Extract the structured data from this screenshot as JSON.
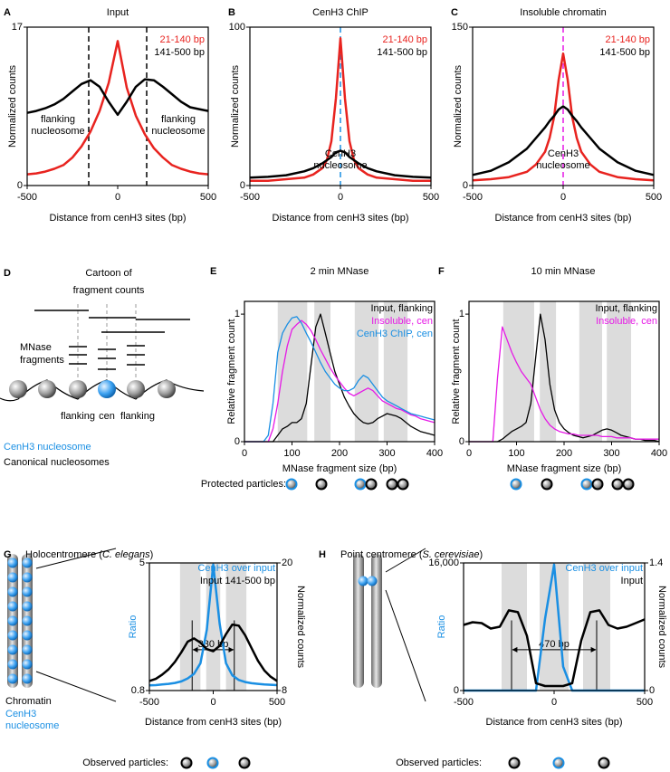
{
  "chart_data": [
    {
      "type": "line",
      "label": "A",
      "title": "Input",
      "xlabel": "Distance from cenH3 sites (bp)",
      "ylabel": "Normalized counts",
      "xlim": [
        -500,
        500
      ],
      "xticks": [
        -500,
        0,
        500
      ],
      "ylim": [
        0,
        17
      ],
      "yticks": [
        0,
        17
      ],
      "x": [
        -500,
        -450,
        -400,
        -350,
        -300,
        -250,
        -200,
        -150,
        -100,
        -50,
        0,
        50,
        100,
        150,
        200,
        250,
        300,
        350,
        400,
        450,
        500
      ],
      "series": [
        {
          "name": "21-140 bp",
          "color": "#e8231f",
          "values": [
            1.2,
            1.3,
            1.5,
            1.8,
            2.2,
            3,
            4.2,
            5.8,
            8,
            11,
            15.5,
            10.5,
            7.5,
            5.5,
            4,
            3,
            2.2,
            1.8,
            1.5,
            1.3,
            1.2
          ]
        },
        {
          "name": "141-500 bp",
          "color": "#000000",
          "values": [
            7.8,
            8,
            8.3,
            8.7,
            9.3,
            10.1,
            10.9,
            11.3,
            10.6,
            9,
            7.6,
            9,
            10.6,
            11.4,
            11.3,
            10.6,
            9.8,
            9,
            8.4,
            8.2,
            8
          ]
        }
      ],
      "ref_lines": [
        -160,
        160
      ],
      "ref_line_color": "#000000",
      "annotations": [
        [
          "flanking",
          "nucleosome"
        ],
        [
          "flanking",
          "nucleosome"
        ]
      ]
    },
    {
      "type": "line",
      "label": "B",
      "title": "CenH3 ChIP",
      "xlabel": "Distance from cenH3 sites (bp)",
      "ylabel": "Normalized counts",
      "xlim": [
        -500,
        500
      ],
      "xticks": [
        -500,
        0,
        500
      ],
      "ylim": [
        0,
        100
      ],
      "yticks": [
        0,
        100
      ],
      "x": [
        -500,
        -400,
        -300,
        -200,
        -150,
        -100,
        -75,
        -50,
        -25,
        0,
        25,
        50,
        75,
        100,
        150,
        200,
        300,
        400,
        500
      ],
      "series": [
        {
          "name": "21-140 bp",
          "color": "#e8231f",
          "values": [
            3,
            3,
            4,
            5,
            7,
            11,
            16,
            28,
            55,
            93,
            55,
            28,
            16,
            11,
            7,
            5,
            4,
            3,
            3
          ]
        },
        {
          "name": "141-500 bp",
          "color": "#000000",
          "values": [
            5,
            5.5,
            6.5,
            9,
            11,
            14,
            16,
            18,
            21,
            22,
            21,
            18,
            16,
            14,
            11,
            9,
            6.5,
            5.5,
            5
          ]
        }
      ],
      "ref_lines": [
        0
      ],
      "ref_line_color": "#1a8fe3",
      "annotations": [
        [
          "CenH3",
          "nucleosome"
        ]
      ]
    },
    {
      "type": "line",
      "label": "C",
      "title": "Insoluble chromatin",
      "xlabel": "Distance from cenH3 sites (bp)",
      "ylabel": "Normalized counts",
      "xlim": [
        -500,
        500
      ],
      "xticks": [
        -500,
        0,
        500
      ],
      "ylim": [
        0,
        150
      ],
      "yticks": [
        0,
        150
      ],
      "x": [
        -500,
        -400,
        -300,
        -200,
        -150,
        -100,
        -75,
        -50,
        -25,
        0,
        25,
        50,
        75,
        100,
        150,
        200,
        300,
        400,
        500
      ],
      "series": [
        {
          "name": "21-140 bp",
          "color": "#e8231f",
          "values": [
            5,
            6,
            8,
            13,
            20,
            32,
            45,
            65,
            100,
            125,
            100,
            65,
            45,
            32,
            20,
            13,
            8,
            6,
            5
          ]
        },
        {
          "name": "141-500 bp",
          "color": "#000000",
          "values": [
            10,
            14,
            22,
            35,
            45,
            55,
            61,
            66,
            72,
            75,
            72,
            66,
            61,
            55,
            45,
            35,
            22,
            14,
            10
          ]
        }
      ],
      "ref_lines": [
        0
      ],
      "ref_line_color": "#e619e6",
      "annotations": [
        [
          "CenH3",
          "nucleosome"
        ]
      ]
    },
    {
      "type": "line",
      "label": "E",
      "title": "2 min MNase",
      "xlabel": "MNase fragment size (bp)",
      "ylabel": "Relative fragment count",
      "xlim": [
        0,
        400
      ],
      "xticks": [
        0,
        100,
        200,
        300,
        400
      ],
      "ylim": [
        0,
        1.1
      ],
      "yticks": [
        0,
        1
      ],
      "x": [
        0,
        10,
        20,
        30,
        40,
        50,
        60,
        70,
        80,
        90,
        100,
        110,
        120,
        130,
        140,
        150,
        160,
        170,
        180,
        190,
        200,
        210,
        220,
        230,
        240,
        250,
        260,
        270,
        280,
        290,
        300,
        310,
        320,
        330,
        340,
        350,
        360,
        370,
        380,
        390,
        400
      ],
      "series": [
        {
          "name": "Input, flanking",
          "color": "#000000",
          "values": [
            0,
            0,
            0,
            0,
            0,
            0,
            0,
            0.05,
            0.1,
            0.12,
            0.15,
            0.15,
            0.18,
            0.3,
            0.6,
            0.9,
            1.0,
            0.85,
            0.7,
            0.55,
            0.45,
            0.35,
            0.28,
            0.22,
            0.18,
            0.15,
            0.14,
            0.15,
            0.18,
            0.2,
            0.22,
            0.21,
            0.2,
            0.18,
            0.15,
            0.12,
            0.1,
            0.08,
            0.07,
            0.06,
            0.05
          ]
        },
        {
          "name": "Insoluble, cen",
          "color": "#e619e6",
          "values": [
            0,
            0,
            0,
            0,
            0,
            0,
            0.1,
            0.3,
            0.55,
            0.75,
            0.88,
            0.92,
            0.95,
            0.92,
            0.87,
            0.8,
            0.72,
            0.65,
            0.58,
            0.52,
            0.47,
            0.42,
            0.38,
            0.36,
            0.38,
            0.4,
            0.42,
            0.4,
            0.36,
            0.32,
            0.3,
            0.28,
            0.26,
            0.25,
            0.23,
            0.21,
            0.2,
            0.18,
            0.17,
            0.16,
            0.15
          ]
        },
        {
          "name": "CenH3 ChIP, cen",
          "color": "#1a8fe3",
          "values": [
            0,
            0,
            0,
            0,
            0,
            0.05,
            0.3,
            0.7,
            0.85,
            0.92,
            0.97,
            0.98,
            0.93,
            0.85,
            0.78,
            0.7,
            0.62,
            0.55,
            0.5,
            0.45,
            0.42,
            0.4,
            0.4,
            0.42,
            0.48,
            0.52,
            0.5,
            0.45,
            0.4,
            0.35,
            0.32,
            0.3,
            0.28,
            0.26,
            0.24,
            0.22,
            0.21,
            0.2,
            0.19,
            0.18,
            0.17
          ]
        }
      ],
      "bands": [
        [
          70,
          132
        ],
        [
          147,
          181
        ],
        [
          232,
          282
        ],
        [
          293,
          343
        ]
      ],
      "footer": "Protected particles:"
    },
    {
      "type": "line",
      "label": "F",
      "title": "10 min MNase",
      "xlabel": "MNase fragment size (bp)",
      "ylabel": "Relative fragment count",
      "xlim": [
        0,
        400
      ],
      "xticks": [
        0,
        100,
        200,
        300,
        400
      ],
      "ylim": [
        0,
        1.1
      ],
      "yticks": [
        0,
        1
      ],
      "x": [
        0,
        10,
        20,
        30,
        40,
        50,
        60,
        70,
        80,
        90,
        100,
        110,
        120,
        130,
        140,
        150,
        160,
        170,
        180,
        190,
        200,
        210,
        220,
        230,
        240,
        250,
        260,
        270,
        280,
        290,
        300,
        310,
        320,
        330,
        340,
        350,
        360,
        370,
        380,
        390,
        400
      ],
      "series": [
        {
          "name": "Input, flanking",
          "color": "#000000",
          "values": [
            0,
            0,
            0,
            0,
            0,
            0,
            0,
            0.02,
            0.05,
            0.08,
            0.1,
            0.12,
            0.15,
            0.3,
            0.65,
            1.0,
            0.8,
            0.45,
            0.25,
            0.15,
            0.1,
            0.07,
            0.05,
            0.04,
            0.03,
            0.04,
            0.05,
            0.07,
            0.09,
            0.1,
            0.09,
            0.07,
            0.05,
            0.04,
            0.03,
            0.02,
            0.02,
            0.01,
            0.01,
            0.01,
            0
          ]
        },
        {
          "name": "Insoluble, cen",
          "color": "#e619e6",
          "values": [
            0,
            0,
            0,
            0,
            0,
            0,
            0.5,
            0.9,
            0.8,
            0.7,
            0.62,
            0.55,
            0.5,
            0.45,
            0.35,
            0.25,
            0.18,
            0.13,
            0.1,
            0.08,
            0.07,
            0.06,
            0.06,
            0.05,
            0.05,
            0.05,
            0.05,
            0.05,
            0.04,
            0.04,
            0.04,
            0.03,
            0.03,
            0.03,
            0.03,
            0.02,
            0.02,
            0.02,
            0.02,
            0.02,
            0.02
          ]
        }
      ],
      "bands": [
        [
          72,
          137
        ],
        [
          149,
          183
        ],
        [
          232,
          280
        ],
        [
          290,
          341
        ]
      ]
    },
    {
      "type": "line",
      "label": "G",
      "title": [
        "Holocentromere (",
        "C. elegans",
        ")"
      ],
      "title_italic": [
        false,
        true,
        false
      ],
      "xlabel": "Distance from cenH3 sites (bp)",
      "ylabel": "Ratio",
      "ylabel_color": "#1a8fe3",
      "y2label": "Normalized counts",
      "xlim": [
        -500,
        500
      ],
      "xticks": [
        -500,
        0,
        500
      ],
      "ylim": [
        0.8,
        5
      ],
      "yticks": [
        0.8,
        5
      ],
      "y2lim": [
        8,
        20
      ],
      "y2ticks": [
        8,
        20
      ],
      "x": [
        -500,
        -450,
        -400,
        -350,
        -300,
        -250,
        -200,
        -150,
        -100,
        -50,
        0,
        50,
        100,
        150,
        200,
        250,
        300,
        350,
        400,
        450,
        500
      ],
      "series": [
        {
          "name": "CenH3 over input",
          "color": "#1a8fe3",
          "values": [
            0.97,
            0.98,
            1.0,
            1.02,
            1.05,
            1.1,
            1.2,
            1.35,
            1.7,
            2.8,
            4.95,
            3.0,
            1.7,
            1.3,
            1.15,
            1.08,
            1.04,
            1.02,
            1.0,
            0.99,
            0.98
          ]
        },
        {
          "name": "Input 141-500 bp",
          "color": "#000000",
          "axis": "y2",
          "values": [
            8.9,
            9.1,
            9.5,
            10,
            10.7,
            11.6,
            12.6,
            12.9,
            12.5,
            11.9,
            11.7,
            12.2,
            13.3,
            14.2,
            14.1,
            13.2,
            12,
            10.8,
            9.9,
            9.3,
            8.9
          ]
        }
      ],
      "bands": [
        [
          -260,
          -100
        ],
        [
          -55,
          55
        ],
        [
          100,
          260
        ]
      ],
      "markers": [
        -165,
        165
      ],
      "marker_label": "330 bp",
      "cartoon_labels": [
        "Chromatin",
        "CenH3",
        "nucleosome"
      ],
      "footer": "Observed particles:"
    },
    {
      "type": "line",
      "label": "H",
      "title": [
        "Point centromere (",
        "S. cerevisiae",
        ")"
      ],
      "title_italic": [
        false,
        true,
        false
      ],
      "xlabel": "Distance from cenH3 sites (bp)",
      "ylabel": "Ratio",
      "ylabel_color": "#1a8fe3",
      "y2label": "Normalized counts",
      "xlim": [
        -500,
        500
      ],
      "xticks": [
        -500,
        0,
        500
      ],
      "ylim": [
        0,
        16000
      ],
      "yticks": [
        0,
        {
          "value": 16000,
          "label": "16,000"
        }
      ],
      "y2lim": [
        0,
        1.4
      ],
      "y2ticks": [
        0,
        1.4
      ],
      "x": [
        -500,
        -450,
        -400,
        -350,
        -300,
        -250,
        -200,
        -150,
        -100,
        -50,
        0,
        50,
        100,
        150,
        200,
        250,
        300,
        350,
        400,
        450,
        500
      ],
      "series": [
        {
          "name": "CenH3 over input",
          "color": "#1a8fe3",
          "values": [
            0,
            0,
            0,
            0,
            0,
            0,
            0,
            0,
            0,
            9000,
            15800,
            3000,
            0,
            0,
            0,
            0,
            0,
            0,
            0,
            0,
            0
          ]
        },
        {
          "name": "Input",
          "color": "#000000",
          "axis": "y2",
          "values": [
            0.72,
            0.75,
            0.74,
            0.68,
            0.7,
            0.88,
            0.86,
            0.6,
            0.08,
            0.05,
            0.05,
            0.05,
            0.08,
            0.55,
            0.86,
            0.88,
            0.72,
            0.68,
            0.7,
            0.74,
            0.78
          ]
        }
      ],
      "bands": [
        [
          -290,
          -150
        ],
        [
          -80,
          80
        ],
        [
          160,
          310
        ]
      ],
      "markers": [
        -235,
        235
      ],
      "marker_label": "470 bp",
      "footer": "Observed particles:"
    }
  ],
  "cartoon": {
    "label": "D",
    "title": [
      "Cartoon of",
      "fragment counts"
    ],
    "fragments_label": [
      "MNase",
      "fragments"
    ],
    "positions": [
      "flanking",
      "cen",
      "flanking"
    ],
    "legend": [
      "CenH3 nucleosome",
      "Canonical nucleosomes"
    ]
  }
}
